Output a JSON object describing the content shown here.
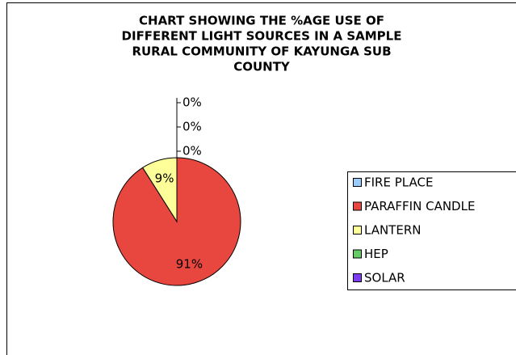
{
  "chart_data": {
    "type": "pie",
    "title": [
      "CHART SHOWING THE  %AGE USE OF",
      "DIFFERENT LIGHT SOURCES IN A SAMPLE",
      "RURAL COMMUNITY OF KAYUNGA SUB",
      "COUNTY"
    ],
    "categories": [
      "FIRE PLACE",
      "PARAFFIN CANDLE",
      "LANTERN",
      "HEP",
      "SOLAR"
    ],
    "values": [
      0,
      91,
      9,
      0,
      0
    ],
    "value_labels": [
      "0%",
      "91%",
      "9%",
      "0%",
      "0%"
    ],
    "colors": [
      "#99ccff",
      "#e8473f",
      "#ffff99",
      "#66cc66",
      "#7d3cf0"
    ],
    "legend": "right"
  }
}
